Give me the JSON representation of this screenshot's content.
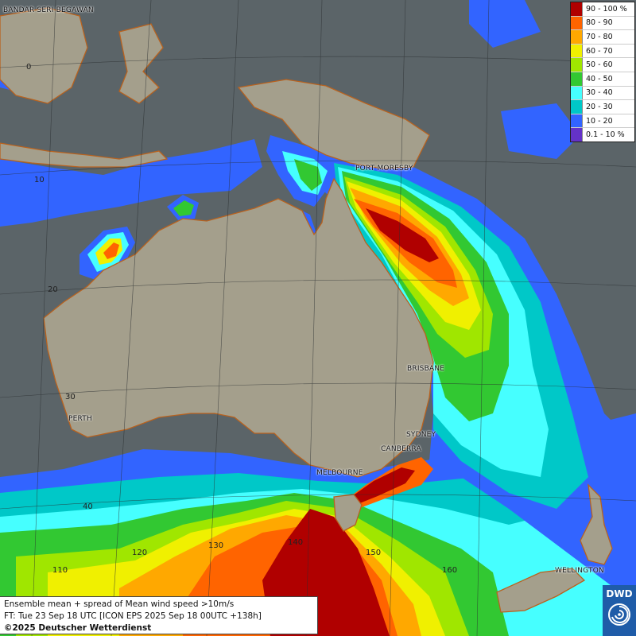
{
  "map": {
    "labels": {
      "bandar": "BANDAR SERI BEGAWAN",
      "port_moresby": "PORT MORESBY",
      "brisbane": "BRISBANE",
      "perth": "PERTH",
      "sydney": "SYDNEY",
      "canberra": "CANBERRA",
      "melbourne": "MELBOURNE",
      "wellington": "WELLINGTON"
    },
    "gridlabels": {
      "lat0": "0",
      "lat10": "10",
      "lat20": "20",
      "lat30": "30",
      "lat40": "40",
      "lon110": "110",
      "lon120": "120",
      "lon130": "130",
      "lon140": "140",
      "lon150": "150",
      "lon160": "160"
    }
  },
  "legend": {
    "items": [
      {
        "label": "90 - 100 %",
        "color": "#b00000"
      },
      {
        "label": "80 - 90",
        "color": "#ff6400"
      },
      {
        "label": "70 - 80",
        "color": "#ffa800"
      },
      {
        "label": "60 - 70",
        "color": "#f0f000"
      },
      {
        "label": "50 - 60",
        "color": "#a0e600"
      },
      {
        "label": "40 - 50",
        "color": "#32c832"
      },
      {
        "label": "30 - 40",
        "color": "#46ffff"
      },
      {
        "label": "20 - 30",
        "color": "#00c8c8"
      },
      {
        "label": "10 - 20",
        "color": "#3264ff"
      },
      {
        "label": "0.1 - 10 %",
        "color": "#6432c8"
      }
    ]
  },
  "info": {
    "line1": "Ensemble mean + spread of Mean wind speed >10m/s",
    "line2": "FT: Tue 23 Sep 18 UTC [ICON EPS 2025 Sep 18 00UTC +138h]",
    "line3": "©2025 Deutscher Wetterdienst"
  },
  "logo": {
    "text": "DWD"
  }
}
